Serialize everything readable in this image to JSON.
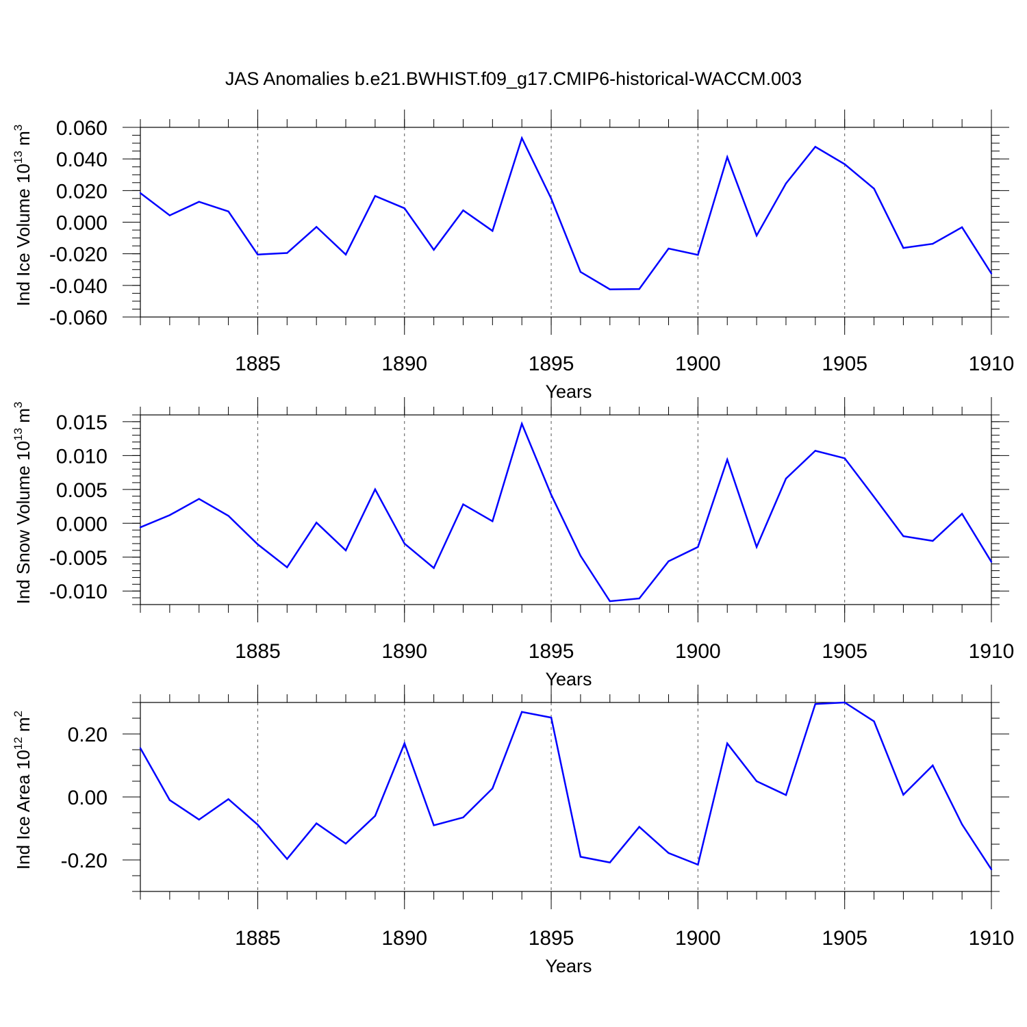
{
  "title": "JAS Anomalies b.e21.BWHIST.f09_g17.CMIP6-historical-WACCM.003",
  "line_color": "#0000ff",
  "chart_data": [
    {
      "type": "line",
      "ylabel": "Ind Ice Volume 10",
      "ylabel_exp": "13",
      "ylabel_unit": " m",
      "ylabel_unit_exp": "3",
      "xlabel": "Years",
      "xlim": [
        1881,
        1910
      ],
      "ylim": [
        -0.06,
        0.06
      ],
      "yticks": [
        "0.060",
        "0.040",
        "0.020",
        "0.000",
        "-0.020",
        "-0.040",
        "-0.060"
      ],
      "ytick_values": [
        0.06,
        0.04,
        0.02,
        0.0,
        -0.02,
        -0.04,
        -0.06
      ],
      "xticks": [
        "1885",
        "1890",
        "1895",
        "1900",
        "1905",
        "1910"
      ],
      "grid": "vertical dashed at major x ticks",
      "x": [
        1881,
        1882,
        1883,
        1884,
        1885,
        1886,
        1887,
        1888,
        1889,
        1890,
        1891,
        1892,
        1893,
        1894,
        1895,
        1896,
        1897,
        1898,
        1899,
        1900,
        1901,
        1902,
        1903,
        1904,
        1905,
        1906,
        1907,
        1908,
        1909,
        1910
      ],
      "series": [
        {
          "values": [
            0.0184,
            0.0043,
            0.0129,
            0.0068,
            -0.0205,
            -0.0195,
            -0.003,
            -0.0205,
            0.0166,
            0.0088,
            -0.0175,
            0.0075,
            -0.0055,
            0.0532,
            0.0149,
            -0.0315,
            -0.0425,
            -0.0423,
            -0.0167,
            -0.0207,
            0.0412,
            -0.0085,
            0.0245,
            0.0477,
            0.0367,
            0.0212,
            -0.0163,
            -0.0137,
            -0.0032,
            -0.0325
          ]
        }
      ]
    },
    {
      "type": "line",
      "ylabel": "Ind Snow Volume 10",
      "ylabel_exp": "13",
      "ylabel_unit": " m",
      "ylabel_unit_exp": "3",
      "xlabel": "Years",
      "xlim": [
        1881,
        1910
      ],
      "ylim": [
        -0.012,
        0.016
      ],
      "yticks": [
        "0.015",
        "0.010",
        "0.005",
        "0.000",
        "-0.005",
        "-0.010"
      ],
      "ytick_values": [
        0.015,
        0.01,
        0.005,
        0.0,
        -0.005,
        -0.01
      ],
      "xticks": [
        "1885",
        "1890",
        "1895",
        "1900",
        "1905",
        "1910"
      ],
      "grid": "vertical dashed at major x ticks",
      "x": [
        1881,
        1882,
        1883,
        1884,
        1885,
        1886,
        1887,
        1888,
        1889,
        1890,
        1891,
        1892,
        1893,
        1894,
        1895,
        1896,
        1897,
        1898,
        1899,
        1900,
        1901,
        1902,
        1903,
        1904,
        1905,
        1906,
        1907,
        1908,
        1909,
        1910
      ],
      "series": [
        {
          "values": [
            -0.0006,
            0.0012,
            0.0036,
            0.0011,
            -0.0031,
            -0.0065,
            0.0001,
            -0.004,
            0.005,
            -0.003,
            -0.0066,
            0.0028,
            0.0003,
            0.0147,
            0.0042,
            -0.0048,
            -0.0115,
            -0.0111,
            -0.0056,
            -0.0035,
            0.0094,
            -0.0035,
            0.0066,
            0.0107,
            0.0096,
            0.0039,
            -0.0019,
            -0.0026,
            0.0014,
            -0.0057
          ]
        }
      ]
    },
    {
      "type": "line",
      "ylabel": "Ind Ice Area 10",
      "ylabel_exp": "12",
      "ylabel_unit": " m",
      "ylabel_unit_exp": "2",
      "xlabel": "Years",
      "xlim": [
        1881,
        1910
      ],
      "ylim": [
        -0.3,
        0.3
      ],
      "yticks": [
        "0.20",
        "0.00",
        "-0.20"
      ],
      "ytick_values": [
        0.2,
        0.0,
        -0.2
      ],
      "xticks": [
        "1885",
        "1890",
        "1895",
        "1900",
        "1905",
        "1910"
      ],
      "grid": "vertical dashed at major x ticks",
      "x": [
        1881,
        1882,
        1883,
        1884,
        1885,
        1886,
        1887,
        1888,
        1889,
        1890,
        1891,
        1892,
        1893,
        1894,
        1895,
        1896,
        1897,
        1898,
        1899,
        1900,
        1901,
        1902,
        1903,
        1904,
        1905,
        1906,
        1907,
        1908,
        1909,
        1910
      ],
      "series": [
        {
          "values": [
            0.155,
            -0.01,
            -0.072,
            -0.007,
            -0.088,
            -0.197,
            -0.084,
            -0.148,
            -0.06,
            0.17,
            -0.09,
            -0.065,
            0.027,
            0.27,
            0.252,
            -0.19,
            -0.208,
            -0.095,
            -0.178,
            -0.215,
            0.17,
            0.05,
            0.006,
            0.295,
            0.3,
            0.24,
            0.007,
            0.1,
            -0.087,
            -0.23
          ]
        }
      ]
    }
  ]
}
